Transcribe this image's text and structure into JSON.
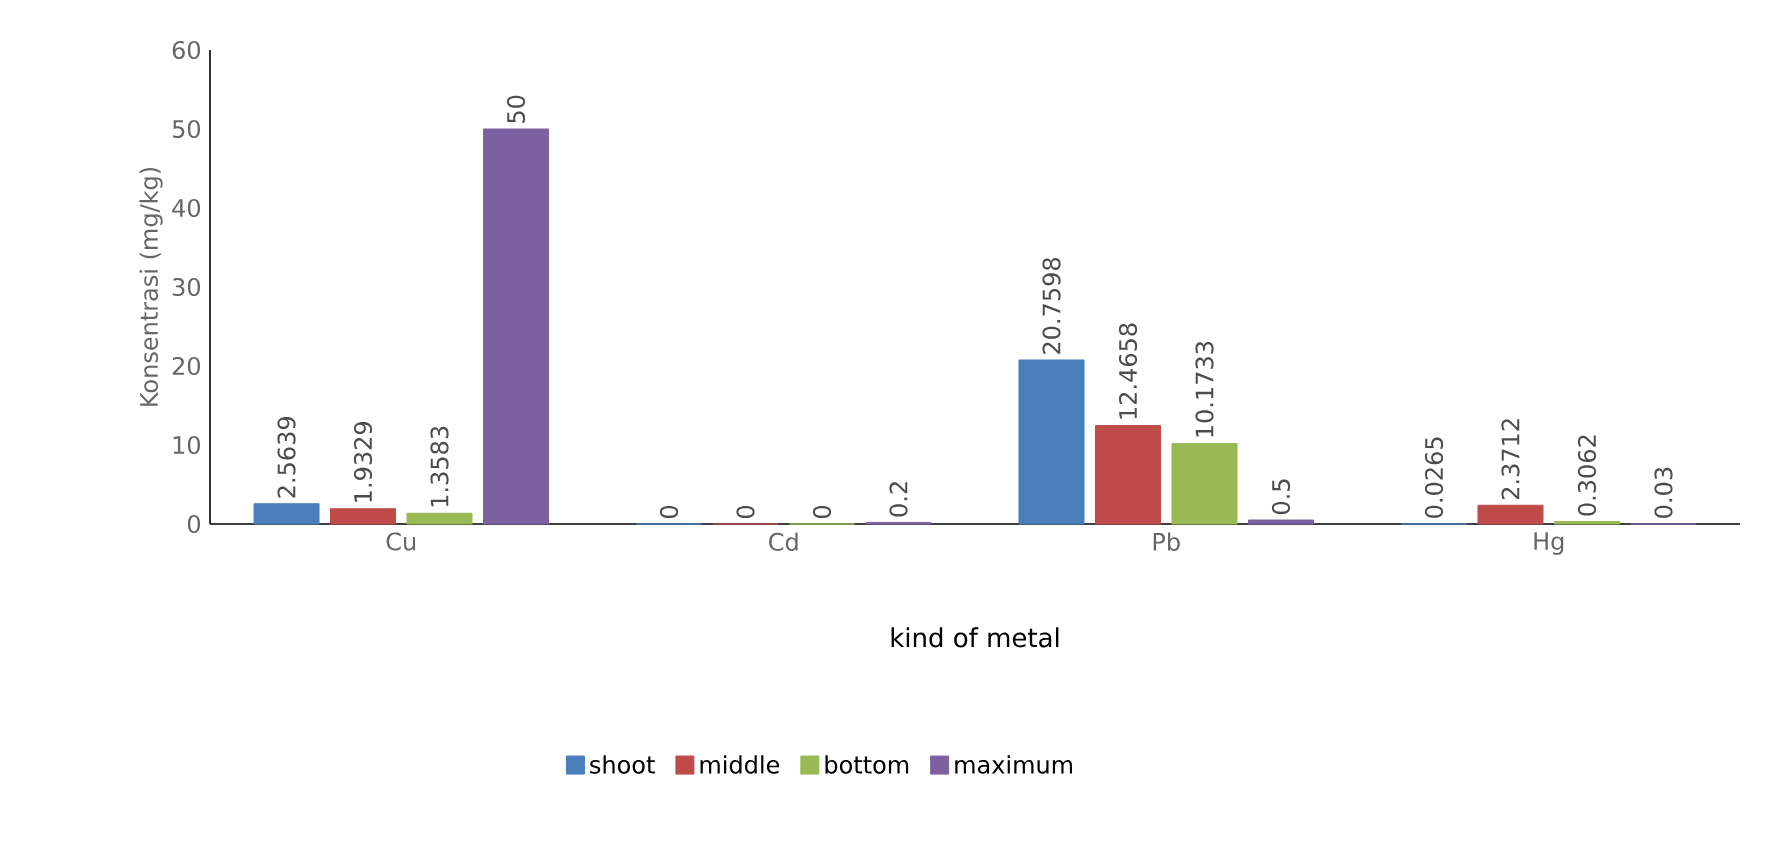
{
  "chart_data": {
    "type": "bar",
    "xlabel": "kind of metal",
    "ylabel": "Konsentrasi (mg/kg)",
    "categories": [
      "Cu",
      "Cd",
      "Pb",
      "Hg"
    ],
    "series": [
      {
        "name": "shoot",
        "color": "#4a7ebb",
        "values": [
          2.5639,
          0,
          20.7598,
          0.0265
        ],
        "value_labels": [
          "2.5639",
          "0",
          "20.7598",
          "0.0265"
        ]
      },
      {
        "name": "middle",
        "color": "#be4b48",
        "values": [
          1.9329,
          0,
          12.4658,
          2.3712
        ],
        "value_labels": [
          "1.9329",
          "0",
          "12.4658",
          "2.3712"
        ]
      },
      {
        "name": "bottom",
        "color": "#98b954",
        "values": [
          1.3583,
          0,
          10.1733,
          0.3062
        ],
        "value_labels": [
          "1.3583",
          "0",
          "10.1733",
          "0.3062"
        ]
      },
      {
        "name": "maximum",
        "color": "#7d60a0",
        "values": [
          50,
          0.2,
          0.5,
          0.03
        ],
        "value_labels": [
          "50",
          "0.2",
          "0.5",
          "0.03"
        ]
      }
    ],
    "ylim": [
      0,
      60
    ],
    "yticks": [
      0,
      10,
      20,
      30,
      40,
      50,
      60
    ],
    "grid": false,
    "legend": "bottom"
  }
}
